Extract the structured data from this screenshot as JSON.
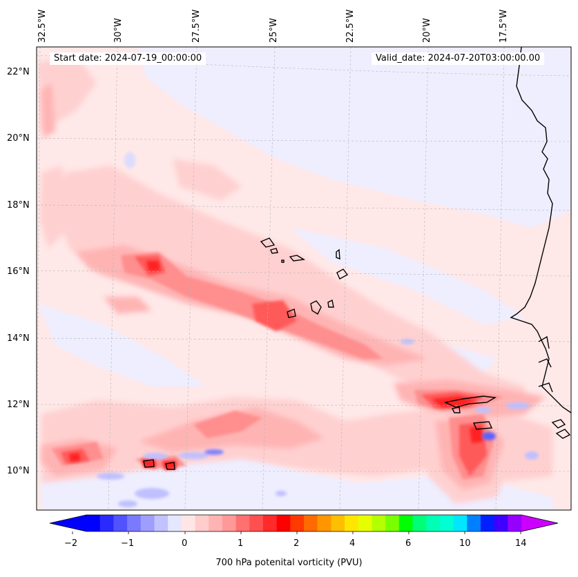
{
  "start_date": "Start date: 2024-07-19_00:00:00",
  "valid_date": "Valid_date: 2024-07-20T03:00:00.00",
  "lon_labels": [
    "32.5°W",
    "30°W",
    "27.5°W",
    "25°W",
    "22.5°W",
    "20°W",
    "17.5°W"
  ],
  "lat_labels": [
    "22°N",
    "20°N",
    "18°N",
    "16°N",
    "14°N",
    "12°N",
    "10°N"
  ],
  "colorbar": {
    "label": "700 hPa potenital vorticity (PVU)",
    "ticks": [
      "−2",
      "−1",
      "0",
      "1",
      "2",
      "4",
      "6",
      "10",
      "14"
    ],
    "colors": [
      "#0000ff",
      "#2a2aff",
      "#5252ff",
      "#7a7aff",
      "#9e9eff",
      "#c2c2ff",
      "#e6e6ff",
      "#ffe6e6",
      "#ffcccc",
      "#ffb3b3",
      "#ff9999",
      "#ff7070",
      "#ff5050",
      "#ff2a2a",
      "#ff0000",
      "#ff3a00",
      "#ff6a00",
      "#ff9600",
      "#ffbe00",
      "#ffe600",
      "#e6ff00",
      "#b4ff00",
      "#78ff00",
      "#00ff00",
      "#00ff78",
      "#00ffb4",
      "#00ffd2",
      "#00e6ff",
      "#0080ff",
      "#0020ff",
      "#4000ff",
      "#9600ff"
    ],
    "under_color": "#0000ff",
    "over_color": "#cc00ff"
  },
  "colors": {
    "background": "#ffe8e8",
    "light_blue": "#eeeeff",
    "pink1": "#ffd0d0",
    "pink2": "#ffb4b4",
    "red1": "#ff8e8e",
    "red2": "#ff5a5a",
    "red3": "#ff2020",
    "blue1": "#c0c0ff",
    "blue2": "#8080ff"
  }
}
